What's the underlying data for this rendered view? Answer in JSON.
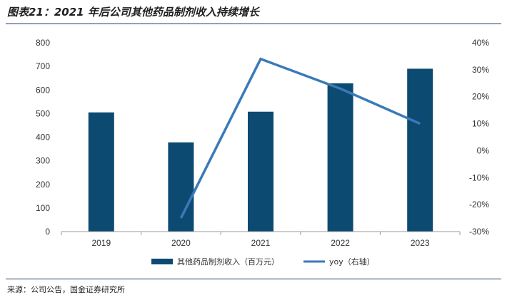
{
  "title": "图表21：2021 年后公司其他药品制剂收入持续增长",
  "source": "来源：公司公告，国金证券研究所",
  "colors": {
    "bar": "#0c4a72",
    "line": "#3a7ab8"
  },
  "chart_data": {
    "type": "bar",
    "categories": [
      "2019",
      "2020",
      "2021",
      "2022",
      "2023"
    ],
    "series": [
      {
        "name": "其他药品制剂收入（百万元）",
        "type": "bar",
        "axis": "left",
        "values": [
          505,
          378,
          508,
          628,
          690
        ]
      },
      {
        "name": "yoy（右轴）",
        "type": "line",
        "axis": "right",
        "values": [
          null,
          -25,
          34,
          23,
          10
        ]
      }
    ],
    "ylim": [
      0,
      800
    ],
    "yticks": [
      "0",
      "100",
      "200",
      "300",
      "400",
      "500",
      "600",
      "700",
      "800"
    ],
    "y2lim": [
      -30,
      40
    ],
    "y2ticks": [
      "-30%",
      "-20%",
      "-10%",
      "0%",
      "10%",
      "20%",
      "30%",
      "40%"
    ],
    "legend_position": "bottom",
    "grid": false
  }
}
